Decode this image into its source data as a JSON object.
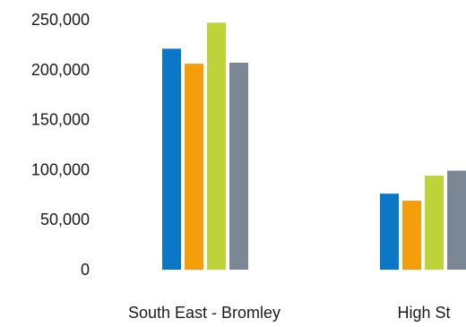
{
  "chart_data": {
    "type": "bar",
    "categories": [
      "South East - Bromley",
      "High St"
    ],
    "series": [
      {
        "values": [
          221000,
          76000
        ],
        "color": "#0a77c7"
      },
      {
        "values": [
          206000,
          69000
        ],
        "color": "#f59e0b"
      },
      {
        "values": [
          247000,
          94000
        ],
        "color": "#bcd33a"
      },
      {
        "values": [
          207000,
          99000
        ],
        "color": "#7a8896"
      }
    ],
    "yticks": [
      "0",
      "50,000",
      "100,000",
      "150,000",
      "200,000",
      "250,000"
    ],
    "ytick_values": [
      0,
      50000,
      100000,
      150000,
      200000,
      250000
    ],
    "ylim": [
      0,
      250000
    ],
    "grid": false,
    "legend": "none"
  }
}
